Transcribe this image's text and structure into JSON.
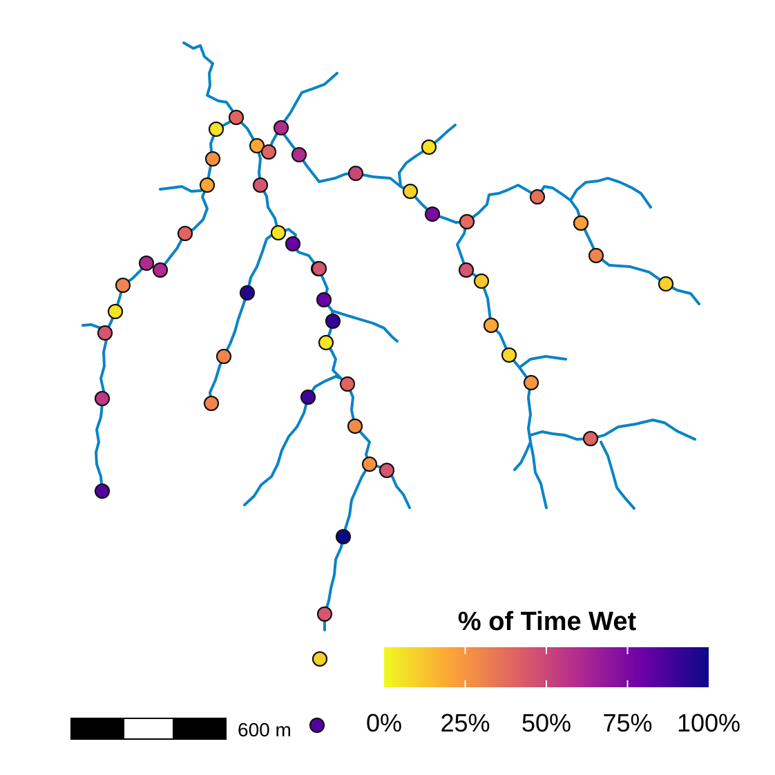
{
  "legend": {
    "title": "% of Time Wet",
    "ticks": [
      {
        "value": 0,
        "label": "0%"
      },
      {
        "value": 0.25,
        "label": "25%"
      },
      {
        "value": 0.5,
        "label": "50%"
      },
      {
        "value": 0.75,
        "label": "75%"
      },
      {
        "value": 1,
        "label": "100%"
      }
    ],
    "colors": [
      "#f0f921",
      "#fca636",
      "#e16462",
      "#b12a90",
      "#6a00a8",
      "#0d0887"
    ]
  },
  "scale_bar": {
    "label": "600 m"
  },
  "colors": {
    "stream": "#0a84c6",
    "outline": "#111111"
  },
  "sites_wet_fraction": [
    0.05,
    0.4,
    0.6,
    0.27,
    0.2,
    0.45,
    0.2,
    0.4,
    0.6,
    0.8,
    0.5,
    0.5,
    0.8,
    0.92,
    0.05,
    0.4,
    0.6,
    0.6,
    0.3,
    0.05,
    0.45,
    0.55,
    0.85,
    0.95,
    0.3,
    0.3,
    0.05,
    0.4,
    0.9,
    0.28,
    0.26,
    0.45,
    1.0,
    0.45,
    0.1,
    0.05,
    0.1,
    0.75,
    0.3,
    0.45,
    0.12,
    0.2,
    0.08,
    0.25,
    0.4,
    0.36,
    0.1,
    0.3,
    0.1,
    0.85,
    0.45,
    0.38,
    0.22
  ]
}
